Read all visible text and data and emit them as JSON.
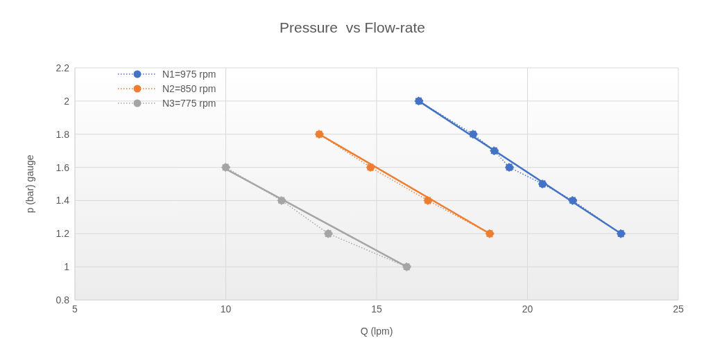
{
  "chart_data": {
    "type": "line",
    "title": "Pressure  vs Flow-rate",
    "xlabel": "Q (lpm)",
    "ylabel": "p (bar) gauge",
    "xlim": [
      5,
      25
    ],
    "xticks": [
      5,
      10,
      15,
      20,
      25
    ],
    "ylim": [
      0.8,
      2.2
    ],
    "yticks": [
      0.8,
      1,
      1.2,
      1.4,
      1.6,
      1.8,
      2,
      2.2
    ],
    "grid": true,
    "legend": "top left",
    "marker": "circle",
    "line_style": "dotted",
    "series": [
      {
        "name": "N1=975 rpm",
        "color": "#4472c4",
        "x": [
          16.4,
          18.2,
          18.9,
          19.4,
          20.5,
          21.5,
          23.1
        ],
        "values": [
          2.0,
          1.8,
          1.7,
          1.6,
          1.5,
          1.4,
          1.2
        ]
      },
      {
        "name": "N2=850 rpm",
        "color": "#ed7d31",
        "x": [
          13.1,
          14.8,
          16.7,
          18.75
        ],
        "values": [
          1.8,
          1.6,
          1.4,
          1.2
        ]
      },
      {
        "name": "N3=775 rpm",
        "color": "#a5a5a5",
        "x": [
          10.0,
          11.85,
          13.4,
          16.0
        ],
        "values": [
          1.6,
          1.4,
          1.2,
          1.0
        ]
      },
      {
        "color": "#4472c4",
        "x": [
          16.4,
          23.1
        ],
        "values": [
          2.0,
          1.2
        ],
        "marker": "none",
        "line_style": "solid"
      },
      {
        "color": "#ed7d31",
        "x": [
          13.1,
          18.75
        ],
        "values": [
          1.8,
          1.2
        ],
        "marker": "none",
        "line_style": "solid"
      },
      {
        "color": "#a5a5a5",
        "x": [
          10.0,
          16.0
        ],
        "values": [
          1.59,
          1.0
        ],
        "marker": "none",
        "line_style": "solid"
      }
    ]
  }
}
